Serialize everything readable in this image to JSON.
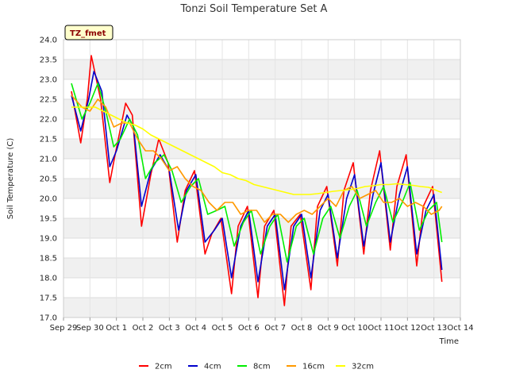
{
  "chart_data": {
    "type": "line",
    "title": "Tonzi Soil Temperature Set A",
    "xlabel": "Time",
    "ylabel": "Soil Temperature (C)",
    "badge": "TZ_fmet",
    "ylim": [
      17.0,
      24.0
    ],
    "xlim": [
      0,
      15
    ],
    "yticks": [
      "17.0",
      "17.5",
      "18.0",
      "18.5",
      "19.0",
      "19.5",
      "20.0",
      "20.5",
      "21.0",
      "21.5",
      "22.0",
      "22.5",
      "23.0",
      "23.5",
      "24.0"
    ],
    "xticks": [
      "Sep 29",
      "Sep 30",
      "Oct 1",
      "Oct 2",
      "Oct 3",
      "Oct 4",
      "Oct 5",
      "Oct 6",
      "Oct 7",
      "Oct 8",
      "Oct 9",
      "Oct 10",
      "Oct 11",
      "Oct 12",
      "Oct 13",
      "Oct 14"
    ],
    "grid": true,
    "legend_position": "bottom",
    "series": [
      {
        "name": "2cm",
        "color": "#ff0000",
        "x": [
          0.3,
          0.65,
          0.9,
          1.05,
          1.4,
          1.75,
          1.95,
          2.35,
          2.6,
          2.95,
          3.3,
          3.6,
          3.95,
          4.3,
          4.6,
          4.95,
          5.35,
          5.6,
          5.95,
          6.35,
          6.6,
          6.95,
          7.35,
          7.6,
          7.95,
          8.35,
          8.6,
          8.95,
          9.35,
          9.6,
          9.95,
          10.35,
          10.6,
          10.95,
          11.35,
          11.6,
          11.95,
          12.35,
          12.6,
          12.95,
          13.35,
          13.6,
          13.95,
          14.3
        ],
        "y": [
          22.7,
          21.4,
          22.5,
          23.6,
          22.5,
          20.4,
          21.1,
          22.4,
          22.1,
          19.3,
          20.6,
          21.5,
          20.9,
          18.9,
          20.2,
          20.7,
          18.6,
          19.1,
          19.5,
          17.6,
          19.3,
          19.8,
          17.5,
          19.3,
          19.7,
          17.3,
          19.3,
          19.6,
          17.7,
          19.8,
          20.3,
          18.3,
          20.2,
          20.9,
          18.6,
          20.2,
          21.2,
          18.7,
          20.3,
          21.1,
          18.3,
          19.8,
          20.3,
          17.9
        ]
      },
      {
        "name": "4cm",
        "color": "#0000cc",
        "x": [
          0.3,
          0.65,
          0.95,
          1.15,
          1.45,
          1.75,
          2.0,
          2.4,
          2.65,
          2.95,
          3.3,
          3.65,
          4.0,
          4.35,
          4.65,
          5.0,
          5.35,
          5.7,
          6.0,
          6.35,
          6.7,
          7.0,
          7.35,
          7.7,
          8.0,
          8.35,
          8.7,
          9.0,
          9.35,
          9.7,
          10.0,
          10.35,
          10.7,
          11.0,
          11.35,
          11.7,
          12.0,
          12.35,
          12.7,
          13.0,
          13.35,
          13.7,
          14.0,
          14.3
        ],
        "y": [
          22.6,
          21.7,
          22.5,
          23.2,
          22.7,
          20.8,
          21.2,
          22.1,
          21.8,
          19.8,
          20.7,
          21.1,
          20.7,
          19.2,
          20.2,
          20.6,
          18.9,
          19.2,
          19.5,
          18.0,
          19.3,
          19.7,
          17.9,
          19.3,
          19.6,
          17.7,
          19.3,
          19.6,
          18.0,
          19.7,
          20.1,
          18.5,
          20.0,
          20.6,
          18.8,
          20.1,
          20.9,
          18.9,
          20.1,
          20.8,
          18.6,
          19.7,
          20.1,
          18.2
        ]
      },
      {
        "name": "8cm",
        "color": "#00ee00",
        "x": [
          0.3,
          0.7,
          1.0,
          1.3,
          1.6,
          1.9,
          2.15,
          2.5,
          2.8,
          3.1,
          3.45,
          3.8,
          4.1,
          4.45,
          4.8,
          5.1,
          5.45,
          5.8,
          6.1,
          6.45,
          6.8,
          7.1,
          7.45,
          7.8,
          8.1,
          8.45,
          8.8,
          9.1,
          9.45,
          9.8,
          10.1,
          10.45,
          10.8,
          11.1,
          11.45,
          11.8,
          12.1,
          12.45,
          12.8,
          13.1,
          13.45,
          13.8,
          14.1,
          14.3
        ],
        "y": [
          22.9,
          22.0,
          22.4,
          22.9,
          22.2,
          21.3,
          21.5,
          22.0,
          21.6,
          20.5,
          20.9,
          21.1,
          20.7,
          19.9,
          20.3,
          20.5,
          19.6,
          19.7,
          19.8,
          18.8,
          19.4,
          19.7,
          18.6,
          19.3,
          19.6,
          18.4,
          19.3,
          19.5,
          18.6,
          19.5,
          19.8,
          19.0,
          19.8,
          20.2,
          19.3,
          19.9,
          20.3,
          19.4,
          19.9,
          20.4,
          19.2,
          19.7,
          19.9,
          18.9
        ]
      },
      {
        "name": "16cm",
        "color": "#ff9900",
        "x": [
          0.3,
          0.7,
          1.0,
          1.3,
          1.6,
          1.9,
          2.2,
          2.5,
          2.8,
          3.1,
          3.4,
          3.7,
          4.0,
          4.3,
          4.6,
          4.9,
          5.2,
          5.5,
          5.8,
          6.1,
          6.4,
          6.7,
          7.0,
          7.3,
          7.6,
          7.9,
          8.2,
          8.5,
          8.8,
          9.1,
          9.4,
          9.7,
          10.0,
          10.3,
          10.6,
          10.9,
          11.2,
          11.5,
          11.8,
          12.1,
          12.4,
          12.7,
          13.0,
          13.3,
          13.6,
          13.9,
          14.2,
          14.3
        ],
        "y": [
          22.6,
          22.3,
          22.2,
          22.5,
          22.3,
          21.8,
          21.9,
          21.9,
          21.5,
          21.2,
          21.2,
          21.0,
          20.7,
          20.8,
          20.5,
          20.3,
          20.2,
          19.9,
          19.7,
          19.9,
          19.9,
          19.6,
          19.7,
          19.7,
          19.4,
          19.6,
          19.6,
          19.4,
          19.6,
          19.7,
          19.6,
          19.8,
          20.0,
          19.8,
          20.2,
          20.3,
          20.0,
          20.1,
          20.2,
          19.9,
          19.9,
          20.0,
          19.8,
          19.9,
          19.8,
          19.6,
          19.7,
          19.8
        ]
      },
      {
        "name": "32cm",
        "color": "#ffff00",
        "x": [
          0.3,
          0.8,
          1.2,
          1.5,
          1.8,
          2.1,
          2.4,
          2.7,
          3.0,
          3.3,
          3.6,
          3.9,
          4.2,
          4.5,
          4.8,
          5.1,
          5.4,
          5.7,
          6.0,
          6.3,
          6.6,
          6.9,
          7.2,
          7.5,
          7.8,
          8.1,
          8.4,
          8.7,
          9.0,
          9.3,
          9.6,
          9.9,
          10.2,
          10.5,
          10.8,
          11.1,
          11.4,
          11.7,
          12.0,
          12.3,
          12.6,
          12.9,
          13.2,
          13.5,
          13.8,
          14.1,
          14.3
        ],
        "y": [
          22.3,
          22.3,
          22.3,
          22.2,
          22.1,
          22.0,
          21.9,
          21.85,
          21.75,
          21.6,
          21.5,
          21.4,
          21.3,
          21.2,
          21.1,
          21.0,
          20.9,
          20.8,
          20.65,
          20.6,
          20.5,
          20.45,
          20.35,
          20.3,
          20.25,
          20.2,
          20.15,
          20.1,
          20.1,
          20.1,
          20.12,
          20.15,
          20.18,
          20.2,
          20.22,
          20.25,
          20.3,
          20.32,
          20.35,
          20.35,
          20.37,
          20.35,
          20.33,
          20.3,
          20.28,
          20.2,
          20.15
        ]
      }
    ]
  }
}
